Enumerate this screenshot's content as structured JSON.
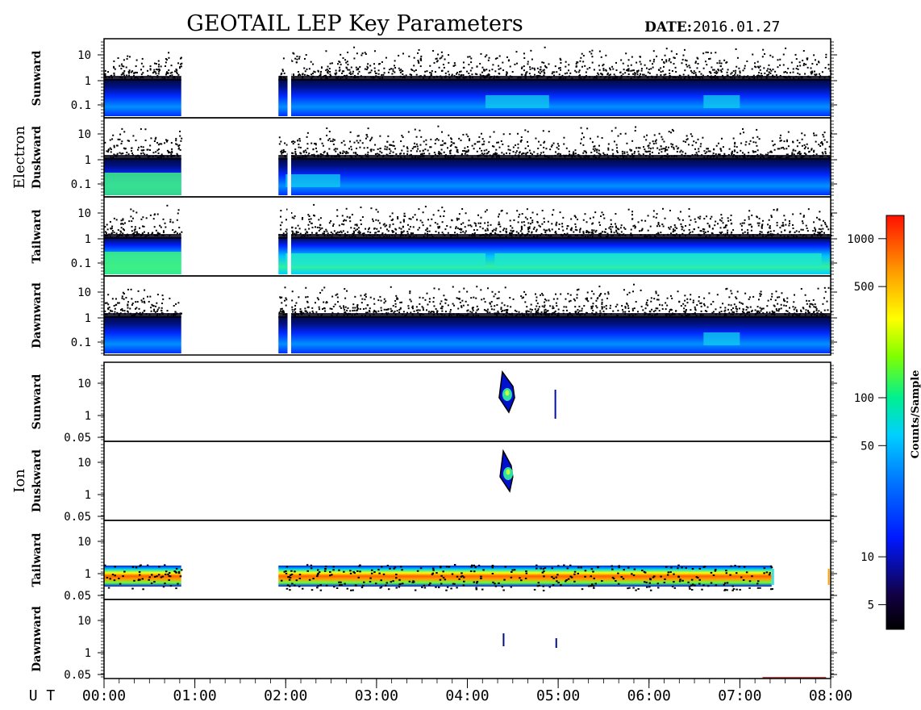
{
  "title": "GEOTAIL LEP Key Parameters",
  "date_label": "DATE:",
  "date_value": "2016.01.27",
  "chart_data": {
    "type": "heatmap",
    "x_axis": {
      "label": "U T",
      "range": [
        "00:00",
        "08:00"
      ],
      "ticks": [
        "00:00",
        "01:00",
        "02:00",
        "03:00",
        "04:00",
        "05:00",
        "06:00",
        "07:00",
        "08:00"
      ]
    },
    "groups": [
      {
        "name": "Electron",
        "y_scale": "log",
        "panels": [
          {
            "name": "Sunward",
            "y_ticks": [
              "10",
              "1",
              "0.1"
            ]
          },
          {
            "name": "Duskward",
            "y_ticks": [
              "10",
              "1",
              "0.1"
            ]
          },
          {
            "name": "Tailward",
            "y_ticks": [
              "10",
              "1",
              "0.1"
            ]
          },
          {
            "name": "Dawnward",
            "y_ticks": [
              "10",
              "1",
              "0.1"
            ]
          }
        ]
      },
      {
        "name": "Ion",
        "y_scale": "log",
        "panels": [
          {
            "name": "Sunward",
            "y_ticks": [
              "10",
              "1",
              "0.05"
            ]
          },
          {
            "name": "Duskward",
            "y_ticks": [
              "10",
              "1",
              "0.05"
            ]
          },
          {
            "name": "Tailward",
            "y_ticks": [
              "10",
              "1",
              "0.05"
            ]
          },
          {
            "name": "Dawnward",
            "y_ticks": [
              "10",
              "1",
              "0.05"
            ]
          }
        ]
      }
    ],
    "colorbar": {
      "label": "Counts/Sample",
      "scale": "log",
      "range": [
        3.5,
        1400
      ],
      "ticks": [
        1000,
        500,
        100,
        50,
        10,
        5
      ],
      "tick_labels": [
        "1000",
        "500",
        "100",
        "50",
        "10",
        "5"
      ]
    },
    "data_coverage": {
      "electron_segments_hours": [
        [
          0.0,
          0.85
        ],
        [
          1.92,
          8.0
        ]
      ],
      "electron_gap_hours": [
        2.02,
        2.06
      ],
      "ion_sunward_bursts_hours": [
        [
          4.35,
          4.52
        ],
        [
          4.96,
          4.98
        ]
      ],
      "ion_duskward_bursts_hours": [
        [
          4.36,
          4.5
        ]
      ],
      "ion_tailward_segments_hours": [
        [
          0.0,
          0.85
        ],
        [
          1.92,
          7.35
        ]
      ],
      "ion_dawnward_bursts_hours": [
        [
          4.39,
          4.4
        ],
        [
          4.97,
          4.98
        ]
      ]
    }
  }
}
